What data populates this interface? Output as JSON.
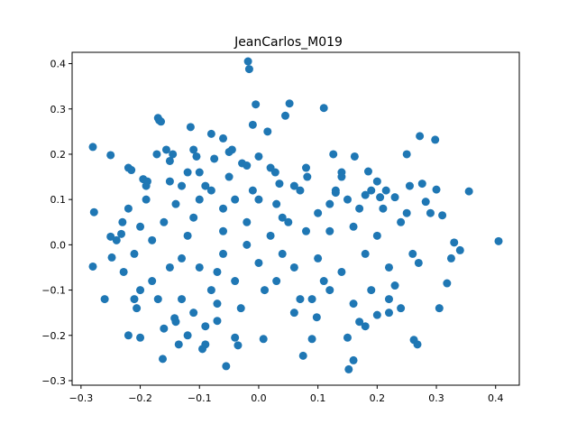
{
  "chart_data": {
    "type": "scatter",
    "title": "JeanCarlos_M019",
    "xlabel": "",
    "ylabel": "",
    "xlim": [
      -0.315,
      0.44
    ],
    "ylim": [
      -0.31,
      0.425
    ],
    "grid": false,
    "xticks": [
      -0.3,
      -0.2,
      -0.1,
      0.0,
      0.1,
      0.2,
      0.3,
      0.4
    ],
    "yticks": [
      -0.3,
      -0.2,
      -0.1,
      0.0,
      0.1,
      0.2,
      0.3,
      0.4
    ],
    "xtick_labels": [
      "−0.3",
      "−0.2",
      "−0.1",
      "0.0",
      "0.1",
      "0.2",
      "0.3",
      "0.4"
    ],
    "ytick_labels": [
      "−0.3",
      "−0.2",
      "−0.1",
      "0.0",
      "0.1",
      "0.2",
      "0.3",
      "0.4"
    ],
    "color": "#1f77b4",
    "series": [
      {
        "points": [
          [
            -0.28,
            0.216
          ],
          [
            -0.278,
            0.072
          ],
          [
            -0.28,
            -0.048
          ],
          [
            -0.26,
            -0.12
          ],
          [
            -0.25,
            0.198
          ],
          [
            -0.25,
            0.018
          ],
          [
            -0.248,
            -0.028
          ],
          [
            -0.24,
            0.01
          ],
          [
            -0.232,
            0.024
          ],
          [
            -0.228,
            -0.06
          ],
          [
            -0.22,
            0.17
          ],
          [
            -0.22,
            -0.2
          ],
          [
            -0.215,
            0.165
          ],
          [
            -0.21,
            -0.12
          ],
          [
            -0.206,
            -0.14
          ],
          [
            -0.2,
            -0.205
          ],
          [
            -0.195,
            0.145
          ],
          [
            -0.19,
            0.13
          ],
          [
            -0.188,
            0.14
          ],
          [
            -0.18,
            0.01
          ],
          [
            -0.172,
            0.2
          ],
          [
            -0.17,
            0.28
          ],
          [
            -0.168,
            0.275
          ],
          [
            -0.165,
            0.272
          ],
          [
            -0.162,
            -0.252
          ],
          [
            -0.16,
            -0.185
          ],
          [
            -0.156,
            0.21
          ],
          [
            -0.15,
            0.185
          ],
          [
            -0.145,
            0.2
          ],
          [
            -0.142,
            -0.162
          ],
          [
            -0.135,
            -0.22
          ],
          [
            -0.13,
            0.13
          ],
          [
            -0.12,
            -0.2
          ],
          [
            -0.115,
            0.26
          ],
          [
            -0.11,
            0.21
          ],
          [
            -0.105,
            0.195
          ],
          [
            -0.1,
            0.16
          ],
          [
            -0.095,
            -0.23
          ],
          [
            -0.09,
            -0.22
          ],
          [
            -0.08,
            0.245
          ],
          [
            -0.075,
            0.19
          ],
          [
            -0.07,
            -0.168
          ],
          [
            -0.06,
            0.235
          ],
          [
            -0.055,
            -0.268
          ],
          [
            -0.05,
            0.205
          ],
          [
            -0.045,
            0.21
          ],
          [
            -0.04,
            -0.205
          ],
          [
            -0.035,
            -0.222
          ],
          [
            -0.028,
            0.18
          ],
          [
            -0.02,
            0.175
          ],
          [
            -0.018,
            0.405
          ],
          [
            -0.016,
            0.388
          ],
          [
            -0.01,
            0.265
          ],
          [
            -0.005,
            0.31
          ],
          [
            0.0,
            0.195
          ],
          [
            0.008,
            -0.208
          ],
          [
            0.015,
            0.25
          ],
          [
            0.02,
            0.17
          ],
          [
            0.028,
            0.16
          ],
          [
            0.035,
            0.135
          ],
          [
            0.045,
            0.285
          ],
          [
            0.052,
            0.312
          ],
          [
            0.06,
            0.13
          ],
          [
            0.07,
            -0.12
          ],
          [
            0.075,
            -0.245
          ],
          [
            0.082,
            0.15
          ],
          [
            0.09,
            -0.208
          ],
          [
            0.098,
            -0.16
          ],
          [
            0.11,
            0.302
          ],
          [
            0.12,
            0.09
          ],
          [
            0.126,
            0.2
          ],
          [
            0.13,
            0.115
          ],
          [
            0.14,
            0.16
          ],
          [
            0.15,
            -0.205
          ],
          [
            0.152,
            -0.275
          ],
          [
            0.16,
            -0.255
          ],
          [
            0.162,
            0.195
          ],
          [
            0.17,
            -0.17
          ],
          [
            0.18,
            -0.18
          ],
          [
            0.185,
            0.162
          ],
          [
            0.19,
            0.12
          ],
          [
            0.2,
            -0.155
          ],
          [
            0.205,
            0.105
          ],
          [
            0.215,
            0.12
          ],
          [
            0.22,
            -0.15
          ],
          [
            0.23,
            0.105
          ],
          [
            0.24,
            -0.14
          ],
          [
            0.25,
            0.2
          ],
          [
            0.255,
            0.13
          ],
          [
            0.262,
            -0.21
          ],
          [
            0.268,
            -0.22
          ],
          [
            0.272,
            0.24
          ],
          [
            0.276,
            0.135
          ],
          [
            0.282,
            0.095
          ],
          [
            0.29,
            0.07
          ],
          [
            0.298,
            0.232
          ],
          [
            0.3,
            0.122
          ],
          [
            0.305,
            -0.14
          ],
          [
            0.31,
            0.065
          ],
          [
            0.318,
            -0.085
          ],
          [
            0.325,
            -0.03
          ],
          [
            0.33,
            0.005
          ],
          [
            0.34,
            -0.012
          ],
          [
            0.355,
            0.118
          ],
          [
            0.405,
            0.008
          ],
          [
            -0.08,
            0.12
          ],
          [
            -0.06,
            0.08
          ],
          [
            -0.04,
            0.1
          ],
          [
            -0.02,
            0.05
          ],
          [
            0.0,
            0.1
          ],
          [
            0.02,
            0.02
          ],
          [
            0.04,
            -0.02
          ],
          [
            -0.12,
            0.02
          ],
          [
            -0.1,
            -0.05
          ],
          [
            -0.08,
            -0.1
          ],
          [
            -0.06,
            -0.02
          ],
          [
            -0.04,
            -0.08
          ],
          [
            -0.02,
            0.0
          ],
          [
            0.0,
            -0.04
          ],
          [
            0.05,
            0.05
          ],
          [
            0.06,
            -0.05
          ],
          [
            0.08,
            0.03
          ],
          [
            0.1,
            0.07
          ],
          [
            0.12,
            0.03
          ],
          [
            0.14,
            -0.06
          ],
          [
            0.16,
            0.04
          ],
          [
            0.18,
            -0.02
          ],
          [
            0.2,
            0.02
          ],
          [
            0.22,
            -0.05
          ],
          [
            0.24,
            0.05
          ],
          [
            0.26,
            -0.02
          ],
          [
            0.15,
            0.1
          ],
          [
            0.17,
            0.08
          ],
          [
            -0.15,
            -0.05
          ],
          [
            -0.16,
            0.05
          ],
          [
            -0.18,
            -0.08
          ],
          [
            -0.2,
            0.04
          ],
          [
            -0.14,
            0.09
          ],
          [
            -0.13,
            -0.12
          ],
          [
            -0.11,
            -0.15
          ],
          [
            -0.09,
            0.13
          ],
          [
            -0.07,
            -0.13
          ],
          [
            -0.05,
            0.15
          ],
          [
            -0.03,
            -0.14
          ],
          [
            -0.01,
            0.12
          ],
          [
            0.01,
            -0.1
          ],
          [
            0.03,
            0.09
          ],
          [
            0.11,
            -0.08
          ],
          [
            0.13,
            0.12
          ],
          [
            0.19,
            -0.1
          ],
          [
            0.21,
            0.08
          ],
          [
            0.23,
            -0.09
          ],
          [
            0.25,
            0.07
          ],
          [
            0.27,
            -0.04
          ],
          [
            -0.17,
            -0.12
          ],
          [
            -0.19,
            0.1
          ],
          [
            -0.21,
            -0.02
          ],
          [
            -0.23,
            0.05
          ],
          [
            -0.12,
            0.16
          ],
          [
            -0.1,
            0.1
          ],
          [
            -0.09,
            -0.18
          ],
          [
            0.07,
            0.12
          ],
          [
            0.09,
            -0.12
          ],
          [
            0.08,
            0.17
          ],
          [
            0.06,
            -0.15
          ],
          [
            -0.15,
            0.14
          ],
          [
            -0.14,
            -0.17
          ],
          [
            0.14,
            0.15
          ],
          [
            0.16,
            -0.13
          ],
          [
            0.2,
            0.14
          ],
          [
            0.22,
            -0.12
          ],
          [
            0.18,
            0.11
          ],
          [
            -0.2,
            -0.1
          ],
          [
            -0.22,
            0.08
          ],
          [
            -0.06,
            0.03
          ],
          [
            -0.07,
            -0.06
          ],
          [
            -0.11,
            0.06
          ],
          [
            -0.13,
            -0.03
          ],
          [
            0.03,
            -0.08
          ],
          [
            0.04,
            0.06
          ],
          [
            0.1,
            -0.03
          ],
          [
            0.12,
            -0.1
          ]
        ]
      }
    ]
  }
}
